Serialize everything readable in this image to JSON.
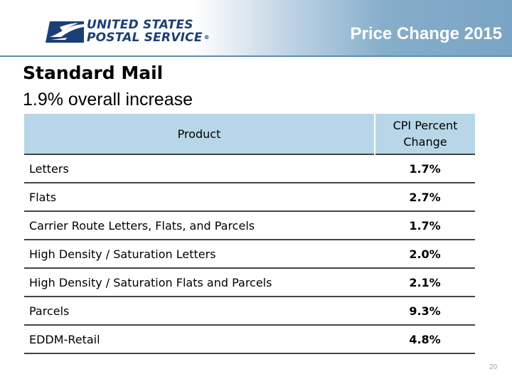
{
  "logo": {
    "line1": "UNITED STATES",
    "line2": "POSTAL SERVICE",
    "trademark": "®"
  },
  "header": {
    "title": "Price Change 2015"
  },
  "slide": {
    "title": "Standard Mail",
    "subtitle": "1.9% overall increase"
  },
  "table": {
    "headers": {
      "product": "Product",
      "cpi_line1": "CPI Percent",
      "cpi_line2": "Change"
    },
    "rows": [
      {
        "product": "Letters",
        "cpi": "1.7%"
      },
      {
        "product": "Flats",
        "cpi": "2.7%"
      },
      {
        "product": "Carrier Route Letters, Flats, and Parcels",
        "cpi": "1.7%"
      },
      {
        "product": "High Density / Saturation Letters",
        "cpi": "2.0%"
      },
      {
        "product": "High Density / Saturation Flats and Parcels",
        "cpi": "2.1%"
      },
      {
        "product": "Parcels",
        "cpi": "9.3%"
      },
      {
        "product": "EDDM-Retail",
        "cpi": "4.8%"
      }
    ]
  },
  "footer": {
    "page_number": "20"
  },
  "colors": {
    "brand_blue": "#1b3f78",
    "header_gradient_end": "#7aa4c4",
    "table_header_bg": "#b7d7e8"
  }
}
